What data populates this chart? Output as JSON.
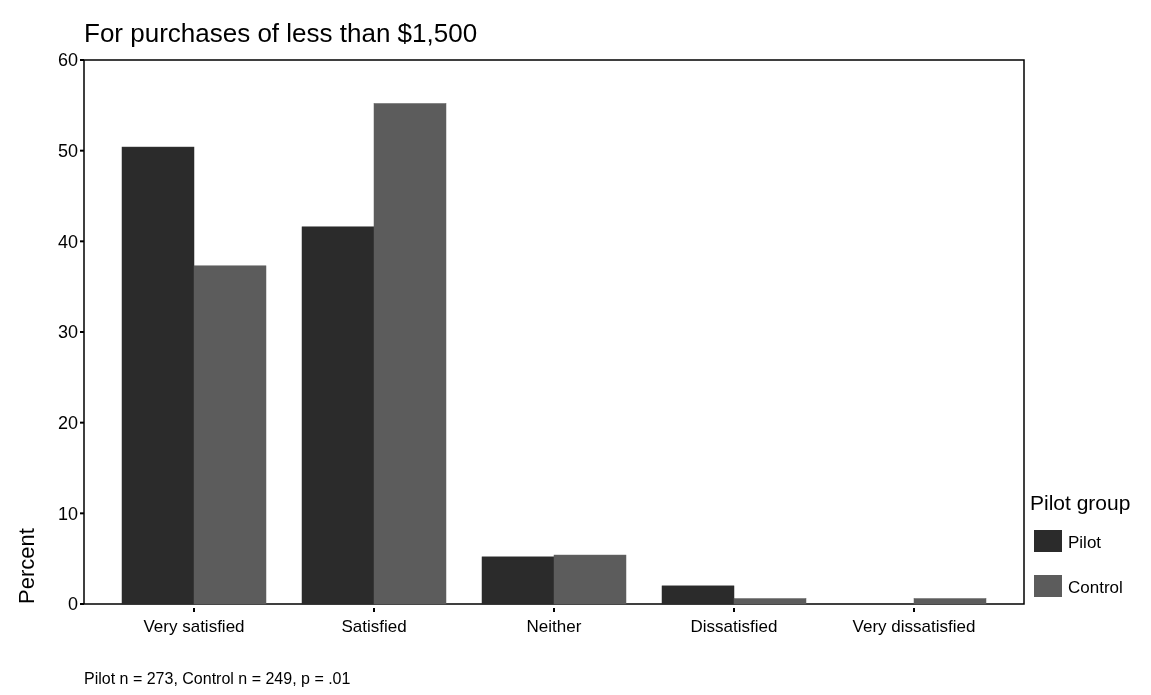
{
  "chart_data": {
    "type": "bar",
    "title": "For purchases of less than $1,500",
    "ylabel": "Percent",
    "legend_title": "Pilot group",
    "categories": [
      "Very satisfied",
      "Satisfied",
      "Neither",
      "Dissatisfied",
      "Very dissatisfied"
    ],
    "series": [
      {
        "name": "Pilot",
        "color": "#2b2b2b",
        "values": [
          50.4,
          41.6,
          5.2,
          2.0,
          0
        ]
      },
      {
        "name": "Control",
        "color": "#5c5c5c",
        "values": [
          37.3,
          55.2,
          5.4,
          0.6,
          0.6
        ]
      }
    ],
    "ylim": [
      0,
      60
    ],
    "yticks": [
      0,
      10,
      20,
      30,
      40,
      50,
      60
    ],
    "grid": false,
    "legend": "right",
    "annotations": [
      "Pilot n = 273, Control n = 249, p = .01"
    ]
  }
}
